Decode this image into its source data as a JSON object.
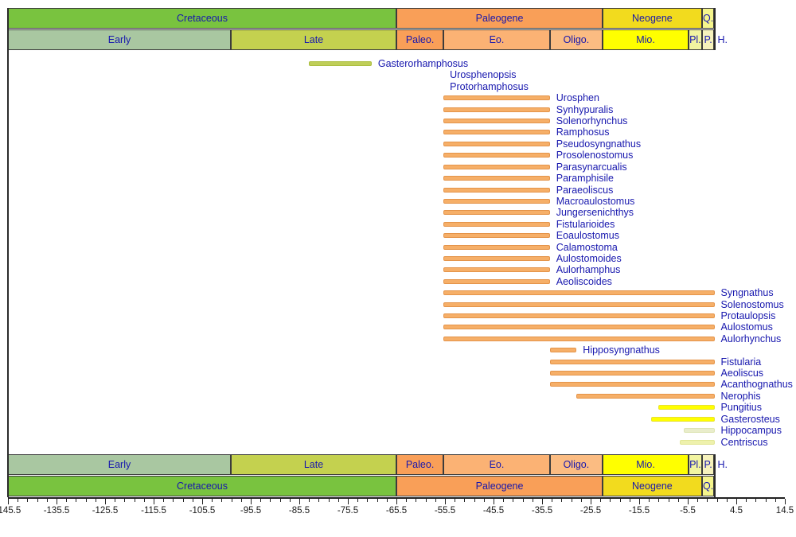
{
  "colors": {
    "taxon_label": "#1717AE",
    "header_label": "#1717AE",
    "tick_label": "#1a1a1a",
    "frame_line": "#2b2b2b"
  },
  "bar_palette": {
    "orange": {
      "fill": "#F6AF68",
      "edge": "#E4944A"
    },
    "olive": {
      "fill": "#BFCE58",
      "edge": "#ABBD3F"
    },
    "yellow": {
      "fill": "#FFFF00",
      "edge": "#E8E233"
    },
    "pale_green": {
      "fill": "#E9EDCB",
      "edge": "#DDE4B4"
    },
    "pale_yellow": {
      "fill": "#EEF1AC",
      "edge": "#E2E795"
    }
  },
  "chart_data": {
    "type": "bar",
    "subtype": "stratigraphic-range-chart",
    "title": "",
    "xlabel": "",
    "ylabel": "",
    "axis": {
      "min": -145.5,
      "max": 14.5,
      "major_tick_step": 10,
      "minor_tick_step": 2,
      "major_tick_labels": [
        "-145.5",
        "-135.5",
        "-125.5",
        "-115.5",
        "-105.5",
        "-95.5",
        "-85.5",
        "-75.5",
        "-65.5",
        "-55.5",
        "-45.5",
        "-35.5",
        "-25.5",
        "-15.5",
        "-5.5",
        "4.5",
        "14.5"
      ]
    },
    "periods": [
      {
        "label": "Cretaceous",
        "start": -145.5,
        "end": -65.5,
        "color": "#79C33F"
      },
      {
        "label": "Paleogene",
        "start": -65.5,
        "end": -23.03,
        "color": "#F99F58"
      },
      {
        "label": "Neogene",
        "start": -23.03,
        "end": -2.59,
        "color": "#F2DB1E"
      },
      {
        "label": "Q.",
        "start": -2.59,
        "end": -0.01,
        "color": "#F5F58C"
      }
    ],
    "epochs": [
      {
        "label": "Early",
        "start": -145.5,
        "end": -99.6,
        "color": "#A9C7A1"
      },
      {
        "label": "Late",
        "start": -99.6,
        "end": -65.5,
        "color": "#C4D14F"
      },
      {
        "label": "Paleo.",
        "start": -65.5,
        "end": -55.8,
        "color": "#F99F58"
      },
      {
        "label": "Eo.",
        "start": -55.8,
        "end": -33.9,
        "color": "#FBB274"
      },
      {
        "label": "Oligo.",
        "start": -33.9,
        "end": -23.03,
        "color": "#FBBC82"
      },
      {
        "label": "Mio.",
        "start": -23.03,
        "end": -5.33,
        "color": "#FFFF00"
      },
      {
        "label": "Pl.",
        "start": -5.33,
        "end": -2.59,
        "color": "#F2F4A0"
      },
      {
        "label": "P.",
        "start": -2.59,
        "end": -0.01,
        "color": "#F6F2BC"
      },
      {
        "label": "H.",
        "start": -0.01,
        "end": 0,
        "color": "#FFFFFF",
        "label_outside": true
      }
    ],
    "taxa": [
      {
        "name": "Gasterorhamphosus",
        "start": -83.5,
        "end": -70.6,
        "color": "olive"
      },
      {
        "name": "Urosphenopsis",
        "start": null,
        "end": -55.8
      },
      {
        "name": "Protorhamphosus",
        "start": null,
        "end": -55.8
      },
      {
        "name": "Urosphen",
        "start": -55.8,
        "end": -33.9,
        "color": "orange"
      },
      {
        "name": "Synhypuralis",
        "start": -55.8,
        "end": -33.9,
        "color": "orange"
      },
      {
        "name": "Solenorhynchus",
        "start": -55.8,
        "end": -33.9,
        "color": "orange"
      },
      {
        "name": "Ramphosus",
        "start": -55.8,
        "end": -33.9,
        "color": "orange"
      },
      {
        "name": "Pseudosyngnathus",
        "start": -55.8,
        "end": -33.9,
        "color": "orange"
      },
      {
        "name": "Prosolenostomus",
        "start": -55.8,
        "end": -33.9,
        "color": "orange"
      },
      {
        "name": "Parasynarcualis",
        "start": -55.8,
        "end": -33.9,
        "color": "orange"
      },
      {
        "name": "Paramphisile",
        "start": -55.8,
        "end": -33.9,
        "color": "orange"
      },
      {
        "name": "Paraeoliscus",
        "start": -55.8,
        "end": -33.9,
        "color": "orange"
      },
      {
        "name": "Macroaulostomus",
        "start": -55.8,
        "end": -33.9,
        "color": "orange"
      },
      {
        "name": "Jungersenichthys",
        "start": -55.8,
        "end": -33.9,
        "color": "orange"
      },
      {
        "name": "Fistularioides",
        "start": -55.8,
        "end": -33.9,
        "color": "orange"
      },
      {
        "name": "Eoaulostomus",
        "start": -55.8,
        "end": -33.9,
        "color": "orange"
      },
      {
        "name": "Calamostoma",
        "start": -55.8,
        "end": -33.9,
        "color": "orange"
      },
      {
        "name": "Aulostomoides",
        "start": -55.8,
        "end": -33.9,
        "color": "orange"
      },
      {
        "name": "Aulorhamphus",
        "start": -55.8,
        "end": -33.9,
        "color": "orange"
      },
      {
        "name": "Aeoliscoides",
        "start": -55.8,
        "end": -33.9,
        "color": "orange"
      },
      {
        "name": "Syngnathus",
        "start": -55.8,
        "end": 0,
        "color": "orange"
      },
      {
        "name": "Solenostomus",
        "start": -55.8,
        "end": 0,
        "color": "orange"
      },
      {
        "name": "Protaulopsis",
        "start": -55.8,
        "end": 0,
        "color": "orange"
      },
      {
        "name": "Aulostomus",
        "start": -55.8,
        "end": 0,
        "color": "orange"
      },
      {
        "name": "Aulorhynchus",
        "start": -55.8,
        "end": 0,
        "color": "orange"
      },
      {
        "name": "Hipposyngnathus",
        "start": -33.9,
        "end": -28.4,
        "color": "orange"
      },
      {
        "name": "Fistularia",
        "start": -33.9,
        "end": 0,
        "color": "orange"
      },
      {
        "name": "Aeoliscus",
        "start": -33.9,
        "end": 0,
        "color": "orange"
      },
      {
        "name": "Acanthognathus",
        "start": -33.9,
        "end": 0,
        "color": "orange"
      },
      {
        "name": "Nerophis",
        "start": -28.4,
        "end": 0,
        "color": "orange"
      },
      {
        "name": "Pungitius",
        "start": -11.6,
        "end": 0,
        "color": "yellow"
      },
      {
        "name": "Gasterosteus",
        "start": -13.0,
        "end": 0,
        "color": "yellow"
      },
      {
        "name": "Hippocampus",
        "start": -6.4,
        "end": 0,
        "color": "pale_green"
      },
      {
        "name": "Centriscus",
        "start": -7.2,
        "end": 0,
        "color": "pale_yellow"
      }
    ]
  }
}
